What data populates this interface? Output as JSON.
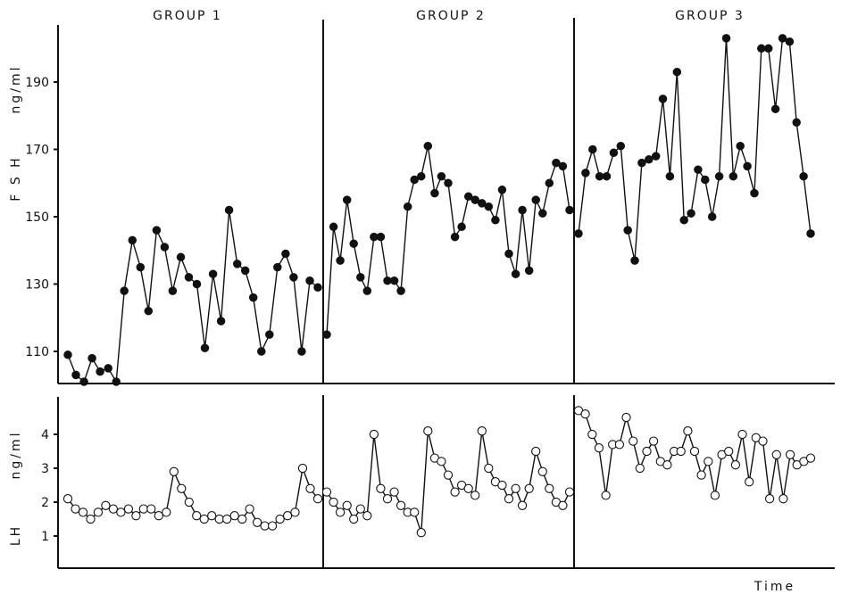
{
  "chart_data": [
    {
      "type": "line",
      "ylabel_left": "F S H",
      "ylabel_units": "ng/ml",
      "ylim": [
        100,
        205
      ],
      "yticks": [
        110,
        130,
        150,
        170,
        190
      ],
      "grid": false,
      "groups": [
        {
          "title": "GROUP 1",
          "values": [
            109,
            103,
            101,
            108,
            104,
            105,
            101,
            128,
            143,
            135,
            122,
            146,
            141,
            128,
            138,
            132,
            130,
            111,
            133,
            119,
            152,
            136,
            134,
            126,
            110,
            115,
            135,
            139,
            132,
            110,
            131,
            129
          ]
        },
        {
          "title": "GROUP 2",
          "values": [
            115,
            147,
            137,
            155,
            142,
            132,
            128,
            144,
            144,
            131,
            131,
            128,
            153,
            161,
            162,
            171,
            157,
            162,
            160,
            144,
            147,
            156,
            155,
            154,
            153,
            149,
            158,
            139,
            133,
            152,
            134,
            155,
            151,
            160,
            166,
            165,
            152
          ]
        },
        {
          "title": "GROUP 3",
          "values": [
            145,
            163,
            170,
            162,
            162,
            169,
            171,
            146,
            137,
            166,
            167,
            168,
            185,
            162,
            193,
            149,
            151,
            164,
            161,
            150,
            162,
            203,
            162,
            171,
            165,
            157,
            200,
            200,
            182,
            203,
            202,
            178,
            162,
            145
          ]
        }
      ]
    },
    {
      "type": "line",
      "ylabel_left": "LH",
      "ylabel_units": "ng/ml",
      "ylim": [
        0,
        5
      ],
      "yticks": [
        1,
        2,
        3,
        4
      ],
      "xlabel": "Time",
      "grid": false,
      "groups": [
        {
          "title": "GROUP 1",
          "values": [
            2.1,
            1.8,
            1.7,
            1.5,
            1.7,
            1.9,
            1.8,
            1.7,
            1.8,
            1.6,
            1.8,
            1.8,
            1.6,
            1.7,
            2.9,
            2.4,
            2.0,
            1.6,
            1.5,
            1.6,
            1.5,
            1.5,
            1.6,
            1.5,
            1.8,
            1.4,
            1.3,
            1.3,
            1.5,
            1.6,
            1.7,
            3.0,
            2.4,
            2.1
          ]
        },
        {
          "title": "GROUP 2",
          "values": [
            2.3,
            2.0,
            1.7,
            1.9,
            1.5,
            1.8,
            1.6,
            4.0,
            2.4,
            2.1,
            2.3,
            1.9,
            1.7,
            1.7,
            1.1,
            4.1,
            3.3,
            3.2,
            2.8,
            2.3,
            2.5,
            2.4,
            2.2,
            4.1,
            3.0,
            2.6,
            2.5,
            2.1,
            2.4,
            1.9,
            2.4,
            3.5,
            2.9,
            2.4,
            2.0,
            1.9,
            2.3
          ]
        },
        {
          "title": "GROUP 3",
          "values": [
            4.7,
            4.6,
            4.0,
            3.6,
            2.2,
            3.7,
            3.7,
            4.5,
            3.8,
            3.0,
            3.5,
            3.8,
            3.2,
            3.1,
            3.5,
            3.5,
            4.1,
            3.5,
            2.8,
            3.2,
            2.2,
            3.4,
            3.5,
            3.1,
            4.0,
            2.6,
            3.9,
            3.8,
            2.1,
            3.4,
            2.1,
            3.4,
            3.1,
            3.2,
            3.3
          ]
        }
      ]
    }
  ]
}
